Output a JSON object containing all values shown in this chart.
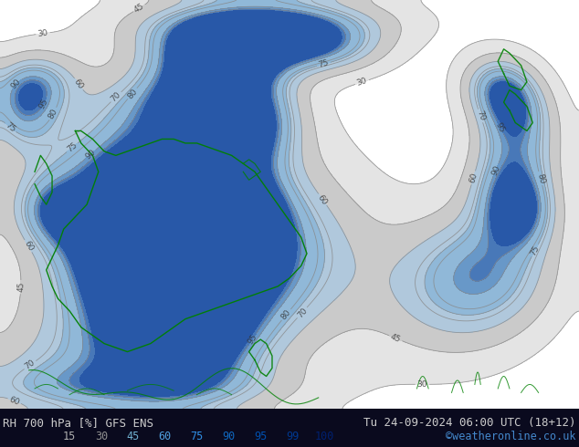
{
  "title_left": "RH 700 hPa [%] GFS ENS",
  "title_right": "Tu 24-09-2024 06:00 UTC (18+12)",
  "credit": "©weatheronline.co.uk",
  "colorbar_levels": [
    15,
    30,
    45,
    60,
    75,
    90,
    95,
    99,
    100
  ],
  "colorbar_label_colors": [
    "#b0b0b0",
    "#909090",
    "#70b0d0",
    "#50a0e0",
    "#3090e8",
    "#1068c0",
    "#0050b0",
    "#003890",
    "#002070"
  ],
  "map_fill_colors": [
    "#ffffff",
    "#e8e8e8",
    "#d0d0d0",
    "#c0d8e8",
    "#a0c8e8",
    "#70aad8",
    "#5090c8",
    "#3070b8",
    "#1848a0"
  ],
  "background_color": "#e8e8e8",
  "bottom_bar_color": "#0a0a1e",
  "text_color_left": "#d0d0d0",
  "text_color_right": "#c0c0c0",
  "credit_color": "#4488cc",
  "fig_width": 6.34,
  "fig_height": 4.9,
  "dpi": 100
}
